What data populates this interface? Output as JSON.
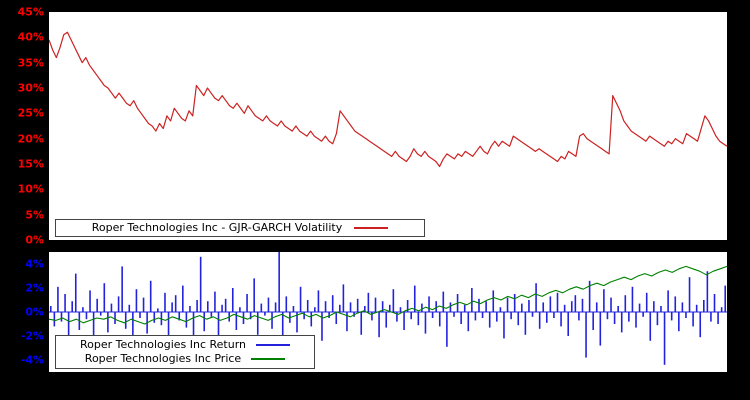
{
  "colors": {
    "background": "#000000",
    "panel_background": "#ffffff",
    "volatility_line": "#cc2222",
    "volatility_ticks": "#ff0000",
    "return_bars": "#2222dd",
    "return_ticks": "#0000ff",
    "price_line": "#008000",
    "legend_text": "#000000"
  },
  "top_panel": {
    "legend_label": "Roper Technologies Inc - GJR-GARCH Volatility",
    "yticks": [
      {
        "value": 0,
        "label": "0%"
      },
      {
        "value": 5,
        "label": "5%"
      },
      {
        "value": 10,
        "label": "10%"
      },
      {
        "value": 15,
        "label": "15%"
      },
      {
        "value": 20,
        "label": "20%"
      },
      {
        "value": 25,
        "label": "25%"
      },
      {
        "value": 30,
        "label": "30%"
      },
      {
        "value": 35,
        "label": "35%"
      },
      {
        "value": 40,
        "label": "40%"
      },
      {
        "value": 45,
        "label": "45%"
      }
    ]
  },
  "bottom_panel": {
    "legend_return_label": "Roper Technologies Inc Return",
    "legend_price_label": "Roper Technologies Inc Price",
    "yticks": [
      {
        "value": -4,
        "label": "-4%"
      },
      {
        "value": -2,
        "label": "-2%"
      },
      {
        "value": 0,
        "label": "0%"
      },
      {
        "value": 2,
        "label": "2%"
      },
      {
        "value": 4,
        "label": "4%"
      }
    ]
  },
  "chart_data": [
    {
      "type": "line",
      "title": "",
      "xlabel": "",
      "ylabel": "",
      "ylim": [
        0,
        45
      ],
      "yticks": [
        0,
        5,
        10,
        15,
        20,
        25,
        30,
        35,
        40,
        45
      ],
      "grid": false,
      "legend_position": "lower left",
      "series": [
        {
          "name": "Roper Technologies Inc - GJR-GARCH Volatility",
          "color": "#cc2222",
          "unit": "%",
          "values": [
            39.5,
            37.5,
            36.0,
            38.0,
            40.5,
            41.0,
            39.5,
            38.0,
            36.5,
            35.0,
            36.0,
            34.5,
            33.5,
            32.5,
            31.5,
            30.5,
            30.0,
            29.0,
            28.0,
            29.0,
            28.0,
            27.0,
            26.5,
            27.5,
            26.0,
            25.0,
            24.0,
            23.0,
            22.5,
            21.5,
            23.0,
            22.0,
            24.5,
            23.5,
            26.0,
            25.0,
            24.0,
            23.5,
            25.5,
            24.5,
            30.5,
            29.5,
            28.5,
            30.0,
            29.0,
            28.0,
            27.5,
            28.5,
            27.5,
            26.5,
            26.0,
            27.0,
            26.0,
            25.0,
            26.5,
            25.5,
            24.5,
            24.0,
            23.5,
            24.5,
            23.5,
            23.0,
            22.5,
            23.5,
            22.5,
            22.0,
            21.5,
            22.5,
            21.5,
            21.0,
            20.5,
            21.5,
            20.5,
            20.0,
            19.5,
            20.5,
            19.5,
            19.0,
            21.0,
            25.5,
            24.5,
            23.5,
            22.5,
            21.5,
            21.0,
            20.5,
            20.0,
            19.5,
            19.0,
            18.5,
            18.0,
            17.5,
            17.0,
            16.5,
            17.5,
            16.5,
            16.0,
            15.5,
            16.5,
            18.0,
            17.0,
            16.5,
            17.5,
            16.5,
            16.0,
            15.5,
            14.5,
            16.0,
            17.0,
            16.5,
            16.0,
            17.0,
            16.5,
            17.5,
            17.0,
            16.5,
            17.5,
            18.5,
            17.5,
            17.0,
            18.5,
            19.5,
            18.5,
            19.5,
            19.0,
            18.5,
            20.5,
            20.0,
            19.5,
            19.0,
            18.5,
            18.0,
            17.5,
            18.0,
            17.5,
            17.0,
            16.5,
            16.0,
            15.5,
            16.5,
            16.0,
            17.5,
            17.0,
            16.5,
            20.5,
            21.0,
            20.0,
            19.5,
            19.0,
            18.5,
            18.0,
            17.5,
            17.0,
            28.5,
            27.0,
            25.5,
            23.5,
            22.5,
            21.5,
            21.0,
            20.5,
            20.0,
            19.5,
            20.5,
            20.0,
            19.5,
            19.0,
            18.5,
            19.5,
            19.0,
            20.0,
            19.5,
            19.0,
            21.0,
            20.5,
            20.0,
            19.5,
            22.0,
            24.5,
            23.5,
            22.0,
            20.5,
            19.5,
            19.0,
            18.5
          ]
        }
      ]
    },
    {
      "type": "bar",
      "title": "",
      "xlabel": "",
      "ylabel": "",
      "ylim": [
        -5,
        5
      ],
      "yticks": [
        -4,
        -2,
        0,
        2,
        4
      ],
      "grid": false,
      "legend_position": "lower left",
      "series": [
        {
          "name": "Roper Technologies Inc Return",
          "type": "bar",
          "color": "#2222dd",
          "unit": "%",
          "values": [
            0.5,
            -1.2,
            2.1,
            -0.8,
            1.5,
            -2.3,
            0.9,
            3.2,
            -1.5,
            0.4,
            -0.6,
            1.8,
            -2.8,
            1.1,
            -0.3,
            2.4,
            -1.7,
            0.7,
            -1.0,
            1.3,
            3.8,
            -1.4,
            0.6,
            -2.1,
            1.9,
            -0.5,
            1.2,
            -1.8,
            2.6,
            -0.9,
            0.3,
            -1.1,
            1.6,
            -2.5,
            0.8,
            1.4,
            -0.7,
            2.2,
            -1.3,
            0.5,
            -2.0,
            1.0,
            4.6,
            -1.6,
            0.9,
            -0.4,
            1.7,
            -2.2,
            0.6,
            1.1,
            -0.8,
            2.0,
            -1.5,
            0.4,
            -1.0,
            1.5,
            -0.6,
            2.8,
            -1.9,
            0.7,
            -0.3,
            1.2,
            -1.4,
            0.8,
            5.0,
            -2.6,
            1.3,
            -0.9,
            0.5,
            -1.7,
            2.1,
            -0.6,
            1.0,
            -1.2,
            0.4,
            1.8,
            -2.4,
            0.9,
            -0.5,
            1.4,
            -1.0,
            0.6,
            2.3,
            -1.6,
            0.8,
            -0.4,
            1.1,
            -1.9,
            0.5,
            1.6,
            -0.7,
            1.2,
            -2.1,
            0.9,
            -1.3,
            0.6,
            1.9,
            -0.8,
            0.4,
            -1.5,
            1.0,
            -0.6,
            2.2,
            -1.1,
            0.7,
            -1.8,
            1.3,
            -0.5,
            0.9,
            -1.2,
            1.7,
            -2.9,
            0.8,
            -0.4,
            1.5,
            -1.0,
            0.6,
            -1.6,
            2.0,
            -0.7,
            1.1,
            -0.5,
            0.9,
            -1.3,
            1.8,
            -0.8,
            0.4,
            -2.2,
            1.2,
            -0.6,
            1.5,
            -1.1,
            0.7,
            -1.9,
            1.0,
            -0.4,
            2.4,
            -1.4,
            0.8,
            -0.9,
            1.3,
            -0.5,
            1.6,
            -1.2,
            0.6,
            -2.0,
            0.9,
            1.4,
            -0.7,
            1.1,
            -3.8,
            2.6,
            -1.5,
            0.8,
            -2.8,
            1.9,
            -0.6,
            1.2,
            -1.0,
            0.5,
            -1.7,
            1.4,
            -0.8,
            2.1,
            -1.3,
            0.7,
            -0.4,
            1.6,
            -2.4,
            0.9,
            -1.1,
            0.5,
            -4.4,
            1.8,
            -0.7,
            1.3,
            -1.6,
            0.8,
            -0.5,
            2.9,
            -1.2,
            0.6,
            -2.1,
            1.0,
            3.4,
            -0.8,
            1.5,
            -1.0,
            0.4,
            2.2
          ]
        },
        {
          "name": "Roper Technologies Inc Price",
          "type": "line",
          "color": "#008000",
          "unit": "%",
          "values": [
            -0.6,
            -0.7,
            -0.5,
            -0.8,
            -0.6,
            -0.9,
            -0.7,
            -0.5,
            -0.6,
            -0.4,
            -0.7,
            -0.9,
            -0.6,
            -0.8,
            -1.0,
            -0.7,
            -0.5,
            -0.7,
            -0.4,
            -0.6,
            -0.8,
            -0.5,
            -0.3,
            -0.6,
            -0.4,
            -0.7,
            -0.5,
            -0.2,
            -0.4,
            -0.6,
            -0.3,
            -0.5,
            -0.7,
            -0.4,
            -0.2,
            -0.5,
            -0.3,
            -0.1,
            -0.4,
            -0.2,
            -0.5,
            -0.3,
            0.0,
            -0.2,
            -0.4,
            -0.1,
            0.1,
            -0.2,
            0.0,
            0.2,
            0.0,
            -0.2,
            0.1,
            0.3,
            0.1,
            0.4,
            0.2,
            0.5,
            0.3,
            0.6,
            0.8,
            0.6,
            0.9,
            0.7,
            1.0,
            1.2,
            1.0,
            1.3,
            1.1,
            1.4,
            1.2,
            1.5,
            1.3,
            1.6,
            1.8,
            1.6,
            1.9,
            2.1,
            1.9,
            2.2,
            2.4,
            2.2,
            2.5,
            2.7,
            2.9,
            2.7,
            3.0,
            3.2,
            3.0,
            3.3,
            3.5,
            3.3,
            3.6,
            3.8,
            3.6,
            3.4,
            3.1,
            3.4,
            3.6,
            3.8
          ]
        }
      ]
    }
  ]
}
